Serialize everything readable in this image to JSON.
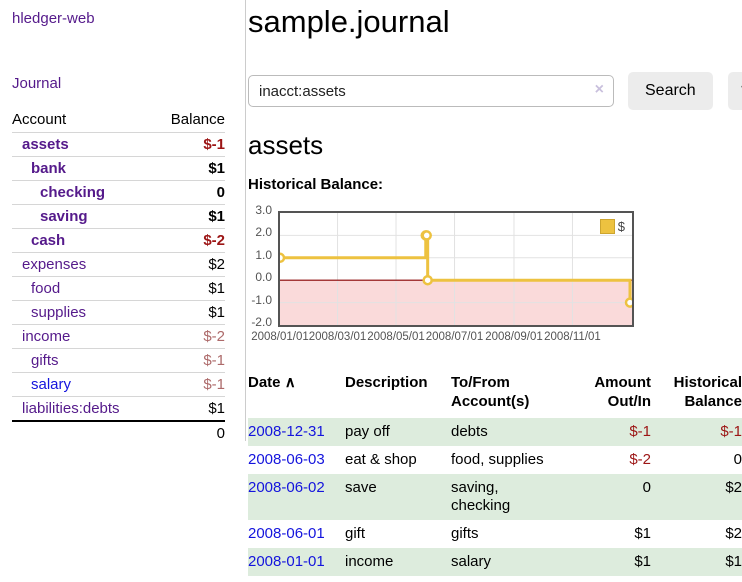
{
  "brand": "hledger-web",
  "colors": {
    "link_purple": "#551a8b",
    "link_blue": "#1414dd",
    "negative_strong": "#9c1515",
    "negative_faint": "#ad6a6a",
    "row_stripe_green": "#ddecdd",
    "chart_gold": "#edc240",
    "chart_negative_region": "#fadada",
    "chart_zero_line": "#8b0000"
  },
  "sidebar": {
    "journal_link": "Journal",
    "accounts": {
      "header": {
        "account": "Account",
        "balance": "Balance"
      },
      "rows": [
        {
          "name": "assets",
          "balance": "$-1",
          "indent": 1,
          "emph": true,
          "balance_style": "neg-strong",
          "link_style": "purple"
        },
        {
          "name": "bank",
          "balance": "$1",
          "indent": 2,
          "emph": true,
          "balance_style": "pos",
          "link_style": "purple"
        },
        {
          "name": "checking",
          "balance": "0",
          "indent": 3,
          "emph": true,
          "balance_style": "pos",
          "link_style": "purple"
        },
        {
          "name": "saving",
          "balance": "$1",
          "indent": 3,
          "emph": true,
          "balance_style": "pos",
          "link_style": "purple"
        },
        {
          "name": "cash",
          "balance": "$-2",
          "indent": 2,
          "emph": true,
          "balance_style": "neg-strong",
          "link_style": "purple"
        },
        {
          "name": "expenses",
          "balance": "$2",
          "indent": 1,
          "emph": false,
          "balance_style": "pos",
          "link_style": "purple"
        },
        {
          "name": "food",
          "balance": "$1",
          "indent": 2,
          "emph": false,
          "balance_style": "pos",
          "link_style": "purple"
        },
        {
          "name": "supplies",
          "balance": "$1",
          "indent": 2,
          "emph": false,
          "balance_style": "pos",
          "link_style": "purple"
        },
        {
          "name": "income",
          "balance": "$-2",
          "indent": 1,
          "emph": false,
          "balance_style": "neg-faint",
          "link_style": "purple"
        },
        {
          "name": "gifts",
          "balance": "$-1",
          "indent": 2,
          "emph": false,
          "balance_style": "neg-faint",
          "link_style": "purple"
        },
        {
          "name": "salary",
          "balance": "$-1",
          "indent": 2,
          "emph": false,
          "balance_style": "neg-faint",
          "link_style": "blue"
        },
        {
          "name": "liabilities:debts",
          "balance": "$1",
          "indent": 1,
          "emph": false,
          "balance_style": "pos",
          "link_style": "purple"
        }
      ],
      "total": "0"
    }
  },
  "main": {
    "title": "sample.journal",
    "search": {
      "value": "inacct:assets",
      "clear_icon": "×",
      "search_button": "Search",
      "help_button": "?"
    },
    "account_title": "assets",
    "chart_title": "Historical Balance:",
    "register": {
      "headers": {
        "date": "Date",
        "sort_icon": "∧",
        "description": "Description",
        "account": "To/From Account(s)",
        "amount": "Amount Out/In",
        "balance": "Historical Balance"
      },
      "rows": [
        {
          "date": "2008-12-31",
          "description": "pay off",
          "accounts": "debts",
          "amount": "$-1",
          "amount_neg": true,
          "balance": "$-1",
          "balance_neg": true,
          "shade": true
        },
        {
          "date": "2008-06-03",
          "description": "eat & shop",
          "accounts": "food, supplies",
          "amount": "$-2",
          "amount_neg": true,
          "balance": "0",
          "balance_neg": false,
          "shade": false
        },
        {
          "date": "2008-06-02",
          "description": "save",
          "accounts": "saving,\nchecking",
          "amount": "0",
          "amount_neg": false,
          "balance": "$2",
          "balance_neg": false,
          "shade": true
        },
        {
          "date": "2008-06-01",
          "description": "gift",
          "accounts": "gifts",
          "amount": "$1",
          "amount_neg": false,
          "balance": "$2",
          "balance_neg": false,
          "shade": false
        },
        {
          "date": "2008-01-01",
          "description": "income",
          "accounts": "salary",
          "amount": "$1",
          "amount_neg": false,
          "balance": "$1",
          "balance_neg": false,
          "shade": true
        }
      ]
    }
  },
  "chart_data": {
    "type": "line",
    "title": "Historical Balance:",
    "step": true,
    "marker": "circle",
    "legend": "$",
    "legend_position": "top-right",
    "grid": true,
    "series": [
      {
        "name": "$",
        "color": "#edc240",
        "points": [
          {
            "x": "2008-01-01",
            "y": 1.0
          },
          {
            "x": "2008-06-01",
            "y": 2.0
          },
          {
            "x": "2008-06-02",
            "y": 2.0
          },
          {
            "x": "2008-06-03",
            "y": 0.0
          },
          {
            "x": "2008-12-31",
            "y": -1.0
          }
        ]
      }
    ],
    "xrange": [
      "2008-01-01",
      "2008-12-31"
    ],
    "ylim": [
      -2.0,
      3.0
    ],
    "yticks": [
      3.0,
      2.0,
      1.0,
      0.0,
      -1.0,
      -2.0
    ],
    "xticks": [
      "2008/01/01",
      "2008/03/01",
      "2008/05/01",
      "2008/07/01",
      "2008/09/01",
      "2008/11/01"
    ],
    "negative_region_color": "#fadada",
    "zero_line_color": "#8b0000"
  }
}
